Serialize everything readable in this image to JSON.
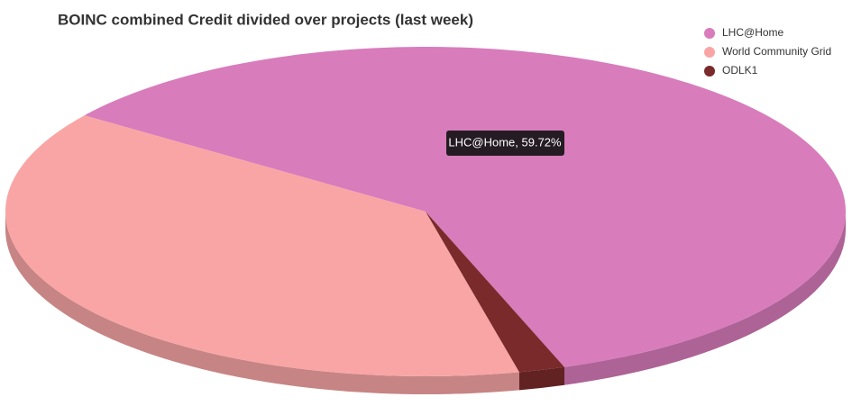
{
  "chart_data": {
    "type": "pie",
    "title": "BOINC combined Credit divided over projects (last week)",
    "categories": [
      "LHC@Home",
      "World Community Grid",
      "ODLK1"
    ],
    "values": [
      59.72,
      38.5,
      1.78
    ],
    "colors": [
      "#d87cbc",
      "#f9a5a5",
      "#7a2a2a"
    ],
    "tooltip": "LHC@Home, 59.72%",
    "legend": "top-right"
  }
}
